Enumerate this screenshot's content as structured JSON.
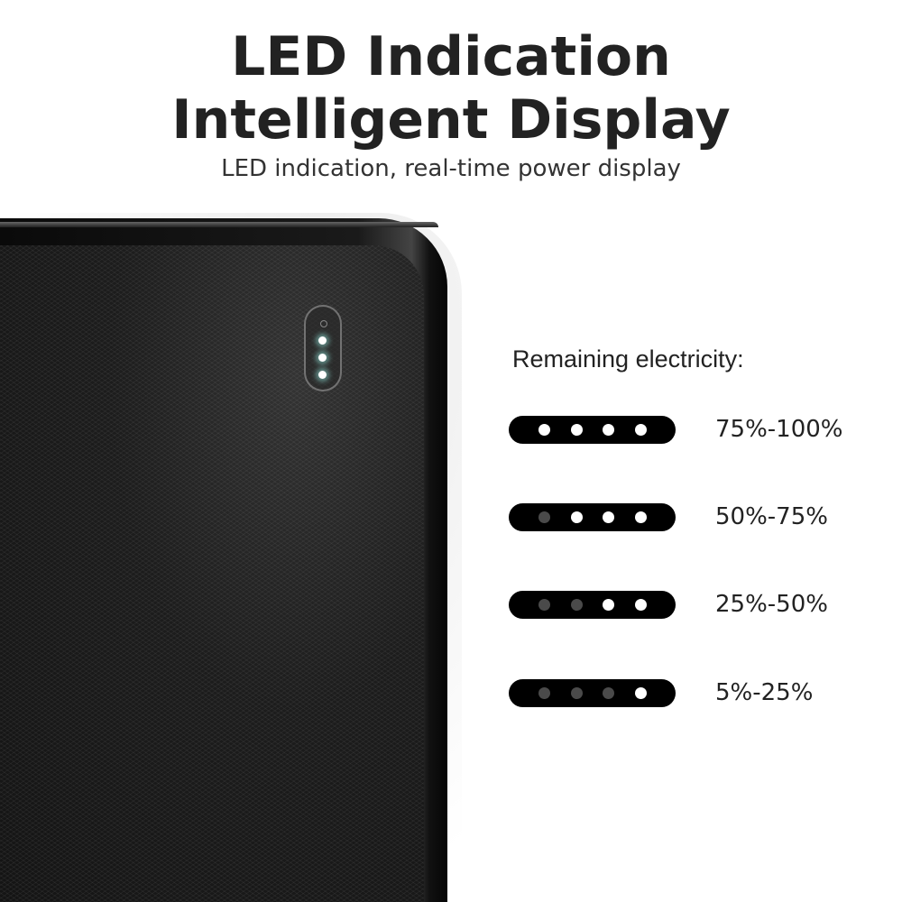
{
  "header": {
    "title_line1": "LED Indication",
    "title_line2": "Intelligent Display",
    "subtitle": "LED indication, real-time power display"
  },
  "product": {
    "lit_leds": 3
  },
  "legend": {
    "heading": "Remaining electricity:",
    "rows": [
      {
        "range": "75%-100%",
        "leds": [
          true,
          true,
          true,
          true
        ]
      },
      {
        "range": "50%-75%",
        "leds": [
          false,
          true,
          true,
          true
        ]
      },
      {
        "range": "25%-50%",
        "leds": [
          false,
          false,
          true,
          true
        ]
      },
      {
        "range": "5%-25%",
        "leds": [
          false,
          false,
          false,
          true
        ]
      }
    ]
  },
  "colors": {
    "led_on": "#ffffff",
    "led_off": "#4a4a4a",
    "pill": "#000000"
  }
}
